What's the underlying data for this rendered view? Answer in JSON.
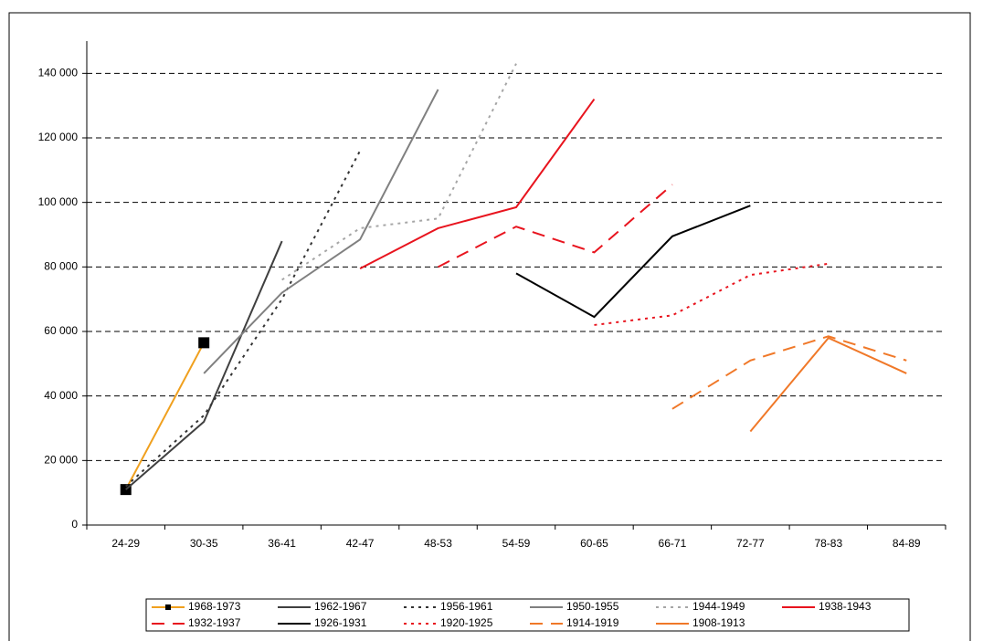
{
  "chart_data": {
    "type": "line",
    "categories": [
      "24-29",
      "30-35",
      "36-41",
      "42-47",
      "48-53",
      "54-59",
      "60-65",
      "66-71",
      "72-77",
      "78-83",
      "84-89"
    ],
    "ylim": [
      0,
      150000
    ],
    "yticks": [
      {
        "value": 0,
        "label": "0"
      },
      {
        "value": 20000,
        "label": "20 000"
      },
      {
        "value": 40000,
        "label": "40 000"
      },
      {
        "value": 60000,
        "label": "60 000"
      },
      {
        "value": 80000,
        "label": "80 000"
      },
      {
        "value": 100000,
        "label": "100 000"
      },
      {
        "value": 120000,
        "label": "120 000"
      },
      {
        "value": 140000,
        "label": "140 000"
      }
    ],
    "grid": true,
    "legend": "bottom",
    "series": [
      {
        "name": "1968-1973",
        "color": "#f0a01e",
        "style": "solid",
        "marker": "square",
        "values": [
          11000,
          56500,
          null,
          null,
          null,
          null,
          null,
          null,
          null,
          null,
          null
        ]
      },
      {
        "name": "1962-1967",
        "color": "#404040",
        "style": "solid",
        "values": [
          11000,
          32000,
          88000,
          null,
          null,
          null,
          null,
          null,
          null,
          null,
          null
        ]
      },
      {
        "name": "1956-1961",
        "color": "#333333",
        "style": "dotted",
        "values": [
          12000,
          34000,
          70000,
          116000,
          null,
          null,
          null,
          null,
          null,
          null,
          null
        ]
      },
      {
        "name": "1950-1955",
        "color": "#808080",
        "style": "solid",
        "values": [
          null,
          47000,
          72000,
          88500,
          135000,
          null,
          null,
          null,
          null,
          null,
          null
        ]
      },
      {
        "name": "1944-1949",
        "color": "#a6a6a6",
        "style": "dotted",
        "values": [
          null,
          null,
          76000,
          92000,
          95000,
          143000,
          null,
          null,
          null,
          null,
          null
        ]
      },
      {
        "name": "1938-1943",
        "color": "#e8141e",
        "style": "solid",
        "values": [
          null,
          null,
          null,
          79500,
          92000,
          98500,
          132000,
          null,
          null,
          null,
          null
        ]
      },
      {
        "name": "1932-1937",
        "color": "#e8141e",
        "style": "dash",
        "values": [
          null,
          null,
          null,
          null,
          80000,
          92500,
          84500,
          105500,
          null,
          null,
          null
        ]
      },
      {
        "name": "1926-1931",
        "color": "#000000",
        "style": "solid",
        "values": [
          null,
          null,
          null,
          null,
          null,
          78000,
          64500,
          89500,
          99000,
          null,
          null
        ]
      },
      {
        "name": "1920-1925",
        "color": "#e8141e",
        "style": "dotted",
        "values": [
          null,
          null,
          null,
          null,
          null,
          null,
          62000,
          65000,
          77500,
          81000,
          null
        ]
      },
      {
        "name": "1914-1919",
        "color": "#f07828",
        "style": "dash",
        "values": [
          null,
          null,
          null,
          null,
          null,
          null,
          null,
          36000,
          51000,
          58500,
          51000
        ]
      },
      {
        "name": "1908-1913",
        "color": "#f07828",
        "style": "solid",
        "values": [
          null,
          null,
          null,
          null,
          null,
          null,
          null,
          null,
          29000,
          58000,
          47000
        ]
      }
    ]
  }
}
